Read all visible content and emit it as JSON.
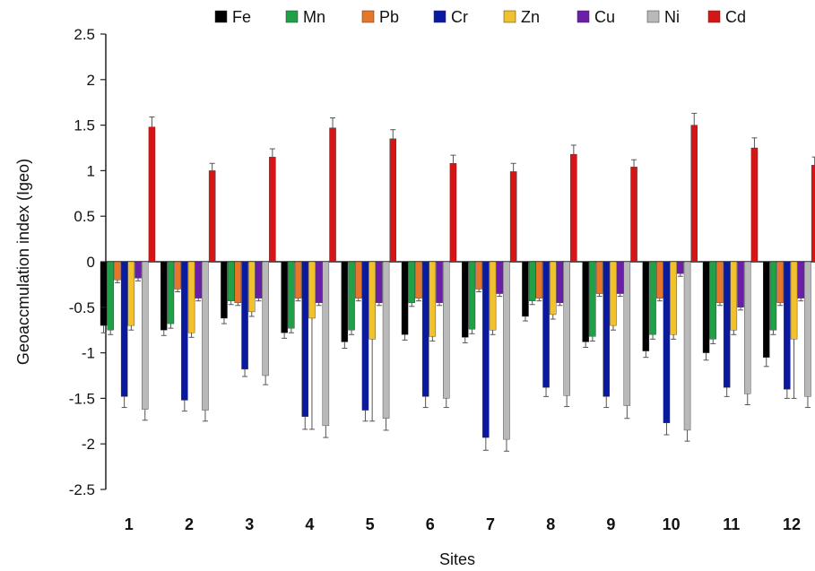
{
  "chart_data": {
    "type": "bar",
    "xlabel": "Sites",
    "ylabel": "Geoaccmulation index (Igeo)",
    "ylim": [
      -2.5,
      2.5
    ],
    "yticks": [
      2.5,
      2,
      1.5,
      1,
      0.5,
      0,
      -0.5,
      -1,
      -1.5,
      -2,
      -2.5
    ],
    "ytick_labels": [
      "2.5",
      "2",
      "1.5",
      "1",
      "0.5",
      "0",
      "-0.5",
      "-1",
      "-1.5",
      "-2",
      "-2.5"
    ],
    "grid": false,
    "legend_position": "top",
    "error_bars": true,
    "categories": [
      "1",
      "2",
      "3",
      "4",
      "5",
      "6",
      "7",
      "8",
      "9",
      "10",
      "11",
      "12"
    ],
    "series": [
      {
        "name": "Fe",
        "color": "#000000",
        "values": [
          -0.7,
          -0.75,
          -0.62,
          -0.78,
          -0.88,
          -0.8,
          -0.83,
          -0.6,
          -0.88,
          -0.98,
          -1.0,
          -1.05
        ],
        "errors": [
          0.08,
          0.06,
          0.06,
          0.06,
          0.07,
          0.06,
          0.06,
          0.05,
          0.06,
          0.07,
          0.08,
          0.1
        ]
      },
      {
        "name": "Mn",
        "color": "#21a147",
        "values": [
          -0.75,
          -0.68,
          -0.43,
          -0.73,
          -0.75,
          -0.45,
          -0.74,
          -0.43,
          -0.82,
          -0.8,
          -0.85,
          -0.75
        ],
        "errors": [
          0.05,
          0.05,
          0.04,
          0.05,
          0.05,
          0.04,
          0.05,
          0.04,
          0.05,
          0.05,
          0.05,
          0.05
        ]
      },
      {
        "name": "Pb",
        "color": "#e5762a",
        "values": [
          -0.2,
          -0.3,
          -0.45,
          -0.4,
          -0.4,
          -0.4,
          -0.3,
          -0.4,
          -0.35,
          -0.4,
          -0.45,
          -0.45
        ],
        "errors": [
          0.03,
          0.03,
          0.03,
          0.03,
          0.03,
          0.03,
          0.03,
          0.03,
          0.03,
          0.03,
          0.03,
          0.03
        ]
      },
      {
        "name": "Cr",
        "color": "#0a1aa0",
        "values": [
          -1.48,
          -1.52,
          -1.18,
          -1.7,
          -1.63,
          -1.48,
          -1.93,
          -1.38,
          -1.48,
          -1.77,
          -1.38,
          -1.4
        ],
        "errors": [
          0.12,
          0.12,
          0.08,
          0.14,
          0.12,
          0.12,
          0.14,
          0.1,
          0.12,
          0.13,
          0.1,
          0.1
        ]
      },
      {
        "name": "Zn",
        "color": "#f2c12e",
        "values": [
          -0.7,
          -0.78,
          -0.55,
          -0.62,
          -0.85,
          -0.82,
          -0.75,
          -0.58,
          -0.7,
          -0.8,
          -0.75,
          -0.85
        ],
        "errors": [
          0.05,
          0.05,
          0.05,
          1.22,
          0.9,
          0.05,
          0.05,
          0.05,
          0.05,
          0.05,
          0.05,
          0.65
        ]
      },
      {
        "name": "Cu",
        "color": "#6a1fa8",
        "values": [
          -0.18,
          -0.4,
          -0.4,
          -0.45,
          -0.45,
          -0.45,
          -0.35,
          -0.45,
          -0.35,
          -0.13,
          -0.5,
          -0.4
        ],
        "errors": [
          0.03,
          0.03,
          0.03,
          0.03,
          0.03,
          0.03,
          0.03,
          0.03,
          0.03,
          0.03,
          0.03,
          0.03
        ]
      },
      {
        "name": "Ni",
        "color": "#b9b9b9",
        "values": [
          -1.62,
          -1.63,
          -1.25,
          -1.8,
          -1.72,
          -1.5,
          -1.95,
          -1.47,
          -1.58,
          -1.85,
          -1.45,
          -1.48
        ],
        "errors": [
          0.12,
          0.12,
          0.1,
          0.13,
          0.13,
          0.1,
          0.13,
          0.12,
          0.14,
          0.12,
          0.12,
          0.12
        ]
      },
      {
        "name": "Cd",
        "color": "#d51616",
        "values": [
          1.48,
          1.0,
          1.15,
          1.47,
          1.35,
          1.08,
          0.99,
          1.18,
          1.04,
          1.5,
          1.25,
          1.06
        ],
        "errors": [
          0.11,
          0.08,
          0.09,
          0.11,
          0.1,
          0.09,
          0.09,
          0.1,
          0.08,
          0.13,
          0.11,
          0.09
        ]
      }
    ]
  }
}
